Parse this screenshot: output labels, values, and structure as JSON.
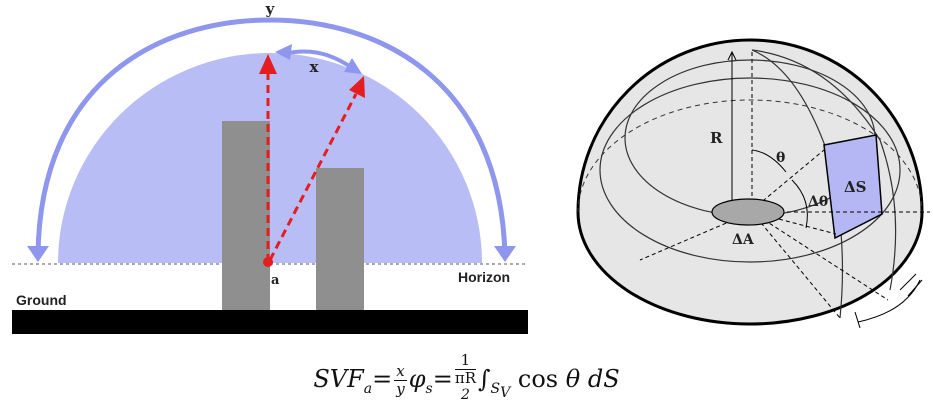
{
  "left_figure": {
    "label_y": "y",
    "label_x": "x",
    "label_point": "a",
    "label_horizon": "Horizon",
    "label_ground": "Ground",
    "colors": {
      "sky": "#b9bdf5",
      "arc": "#8f96ee",
      "building": "#8f8f8f",
      "ray": "#e41e1e",
      "ground": "#000000"
    }
  },
  "right_figure": {
    "label_R": "R",
    "label_theta": "θ",
    "label_dtheta": "Δθ",
    "label_dS": "ΔS",
    "label_dA": "ΔA",
    "colors": {
      "shell": "#e6e6e6",
      "patch": "#b4b7f3",
      "disc": "#a8a8a8"
    }
  },
  "formula": {
    "lhs_var": "SVF",
    "lhs_sub": "a",
    "eq1": "=",
    "f1_num": "x",
    "f1_den": "y",
    "phi": "φ",
    "phi_sub": "s",
    "eq2": "=",
    "f2_num": "1",
    "f2_den": "πR",
    "f2_den_sup": "2",
    "integral": "∫",
    "int_sub": "S",
    "int_sub_sub": "V",
    "cos": "cos",
    "theta": "θ",
    "tail": "dS"
  }
}
